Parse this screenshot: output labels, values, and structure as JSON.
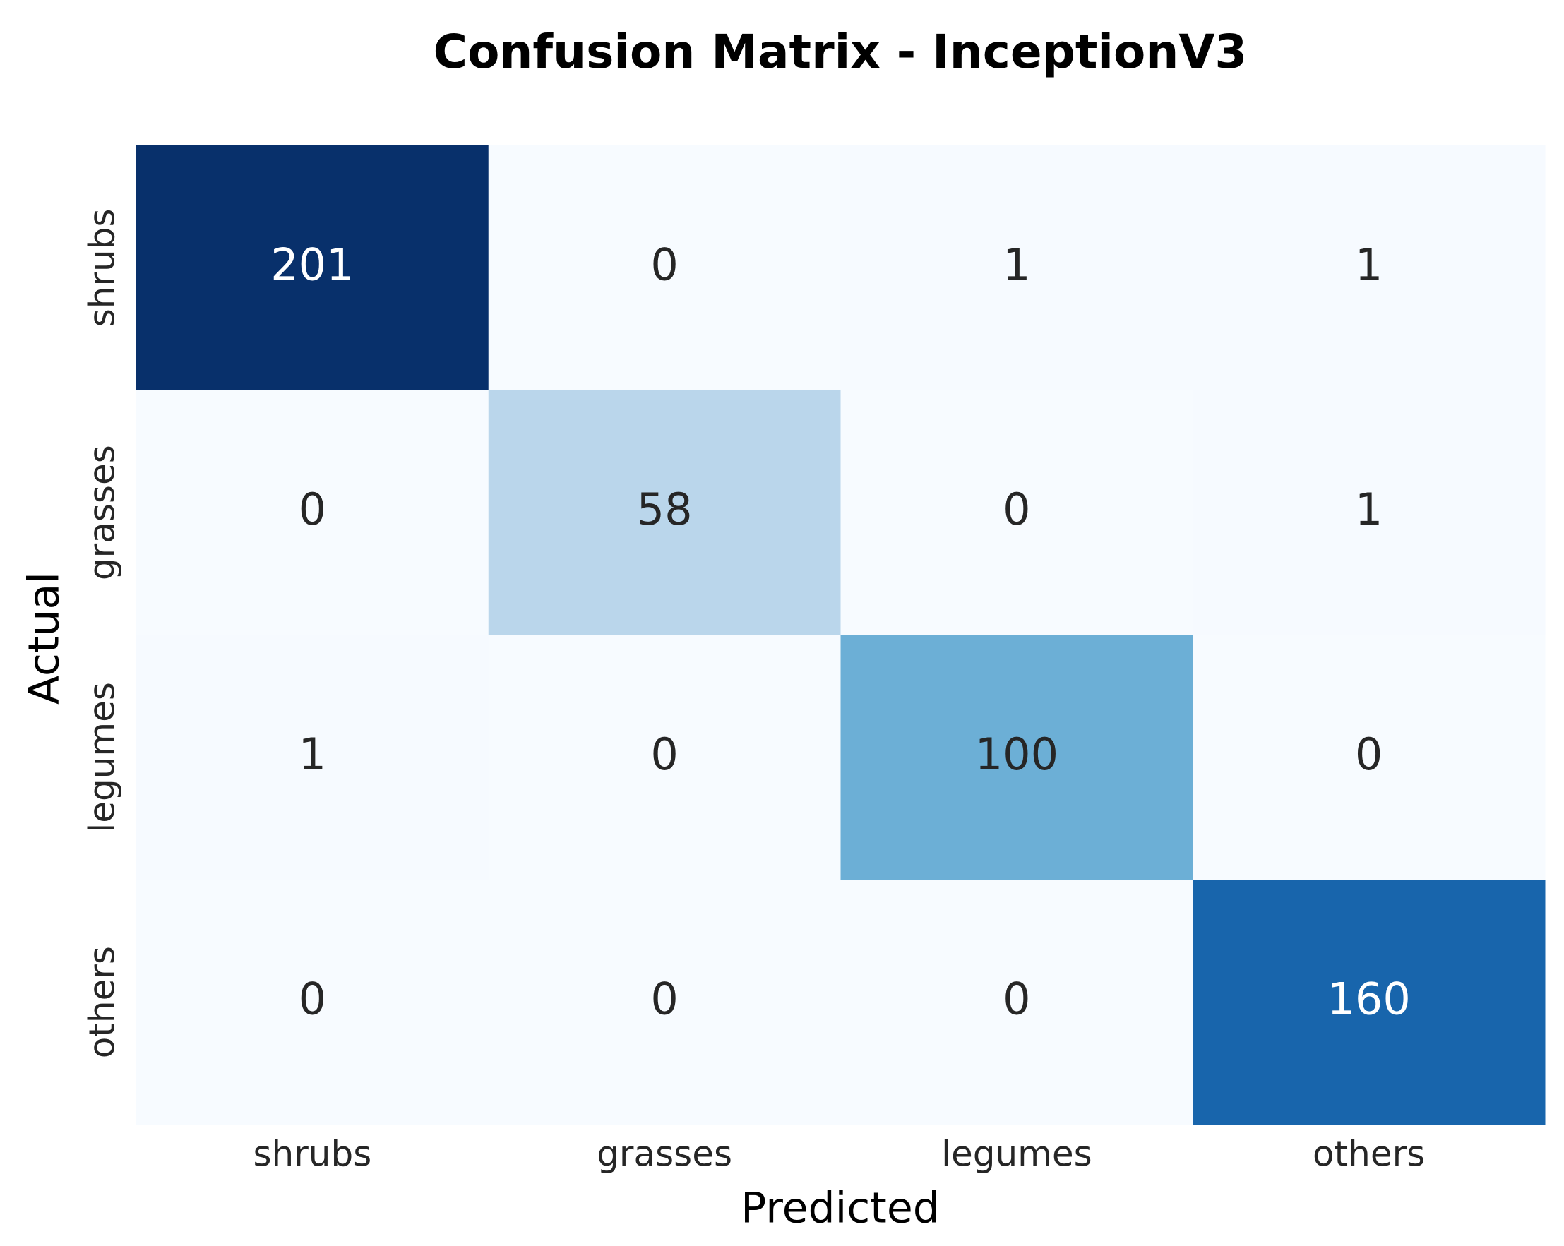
{
  "chart_data": {
    "type": "heatmap",
    "title": "Confusion Matrix - InceptionV3",
    "x_label": "Predicted",
    "y_label": "Actual",
    "x_categories": [
      "shrubs",
      "grasses",
      "legumes",
      "others"
    ],
    "y_categories": [
      "shrubs",
      "grasses",
      "legumes",
      "others"
    ],
    "values": [
      [
        201,
        0,
        1,
        1
      ],
      [
        0,
        58,
        0,
        1
      ],
      [
        1,
        0,
        100,
        0
      ],
      [
        0,
        0,
        0,
        160
      ]
    ],
    "colormap": "Blues"
  }
}
